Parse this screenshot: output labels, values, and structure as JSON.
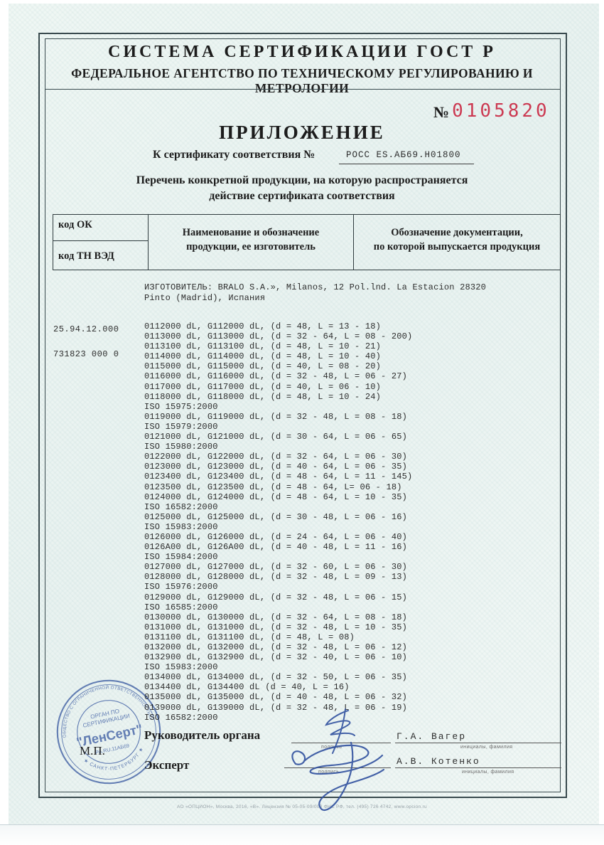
{
  "colors": {
    "accent-red": "#cc3a52",
    "frame": "#394a4e",
    "stamp-blue": "#4c6ab2",
    "ink-blue": "#31519f"
  },
  "header": {
    "line1": "СИСТЕМА СЕРТИФИКАЦИИ ГОСТ Р",
    "line2": "ФЕДЕРАЛЬНОЕ АГЕНТСТВО ПО ТЕХНИЧЕСКОМУ РЕГУЛИРОВАНИЮ И МЕТРОЛОГИИ"
  },
  "certificate": {
    "number_sign": "№",
    "number": "0105820",
    "title": "ПРИЛОЖЕНИЕ",
    "subtitle_label": "К сертификату соответствия №",
    "subtitle_value": "РОСС ES.АБ69.Н01800",
    "description": "Перечень конкретной продукции,  на которую распространяется\nдействие сертификата соответствия"
  },
  "table": {
    "col1_row1": "код ОК",
    "col1_row2": "код ТН ВЭД",
    "col2": "Наименование и обозначение\nпродукции, ее изготовитель",
    "col3": "Обозначение документации,\nпо которой выпускается продукция"
  },
  "codes": {
    "ok": "25.94.12.000",
    "tnved": "731823 000 0"
  },
  "manufacturer": {
    "lines": [
      "ИЗГОТОВИТЕЛЬ: BRALO S.A.», Milanos, 12 Pol.lnd. La Estacion 28320",
      "Pinto (Madrid), Испания"
    ]
  },
  "products": [
    "0112000 dL, G112000 dL, (d = 48, L = 13 - 18)",
    "0113000 dL, G113000 dL, (d = 32 - 64, L = 08 - 200)",
    "0113100 dL, G113100 dL, (d = 48, L = 10 - 21)",
    "0114000 dL, G114000 dL, (d = 48, L = 10 - 40)",
    "0115000 dL, G115000 dL, (d = 40, L = 08 - 20)",
    "0116000 dL, G116000 dL, (d = 32 - 48, L = 06 - 27)",
    "0117000 dL, G117000 dL, (d = 40, L = 06 - 10)",
    "0118000 dL, G118000 dL, (d = 48, L = 10 - 24)",
    "ISO 15975:2000",
    "0119000 dL, G119000 dL, (d = 32 - 48, L = 08 - 18)",
    "ISO 15979:2000",
    "0121000 dL, G121000 dL, (d = 30 - 64, L = 06 - 65)",
    "ISO 15980:2000",
    "0122000 dL, G122000 dL, (d = 32 - 64, L = 06 - 30)",
    "0123000 dL, G123000 dL, (d = 40 - 64, L = 06 - 35)",
    "0123400 dL, G123400 dL, (d = 48 - 64, L = 11 - 145)",
    "0123500 dL, G123500 dL, (d = 48 - 64, L= 06 - 18)",
    "0124000 dL, G124000 dL, (d = 48 - 64, L = 10 - 35)",
    "ISO 16582:2000",
    "0125000 dL, G125000 dL, (d = 30 - 48, L = 06 - 16)",
    "ISO 15983:2000",
    "0126000 dL, G126000 dL, (d = 24 - 64, L = 06 - 40)",
    "0126A00 dL, G126A00 dL, (d = 40 - 48, L = 11 - 16)",
    "ISO 15984:2000",
    "0127000 dL, G127000 dL, (d = 32 - 60, L = 06 - 30)",
    "0128000 dL, G128000 dL, (d = 32 - 48, L = 09 - 13)",
    "ISO 15976:2000",
    "0129000 dL, G129000 dL, (d = 32 - 48, L = 06 - 15)",
    "ISO 16585:2000",
    "0130000 dL, G130000 dL, (d = 32 - 64, L = 08 - 18)",
    "0131000 dL, G131000 dL, (d = 32 - 48, L = 10 - 35)",
    "0131100 dL, G131100 dL, (d = 48, L = 08)",
    "0132000 dL, G132000 dL, (d = 32 - 48, L = 06 - 12)",
    "0132900 dL, G132900 dL, (d = 32 - 40, L = 06 - 10)",
    "ISO 15983:2000",
    "0134000 dL, G134000 dL, (d = 32 - 50, L = 06 - 35)",
    "0134400 dL, G134400 dL (d = 40, L = 16)",
    "0135000 dL, G135000 dL, (d = 40 - 48, L = 06 - 32)",
    "0139000 dL, G139000 dL, (d = 32 - 48, L = 06 - 19)",
    "ISO 16582:2000"
  ],
  "signatures": {
    "row1_label": "Руководитель органа",
    "row1_sub": "подпись",
    "row1_name": "Г.А. Вагер",
    "row1_name_sub": "инициалы, фамилия",
    "row2_label": "Эксперт",
    "row2_sub": "подпись",
    "row2_name": "А.В. Котенко",
    "row2_name_sub": "инициалы, фамилия"
  },
  "stamp": {
    "ring_top": "ОБЩЕСТВО С ОГРАНИЧЕННОЙ ОТВЕТСТВЕННОСТЬЮ",
    "ring_bottom": "★ САНКТ-ПЕТЕРБУРГ ★",
    "center_line1": "ОРГАН ПО",
    "center_line2": "СЕРТИФИКАЦИИ",
    "center_line3": "\"ЛенСерт\"",
    "center_line4": "РА.RU.11АБ69",
    "mp": "М.П."
  },
  "footer": "АО «ОПЦИОН», Москва, 2016, «В».   Лицензия № 05-05-09/003 ФНС РФ, тел. (495) 726 4742, www.opcion.ru"
}
